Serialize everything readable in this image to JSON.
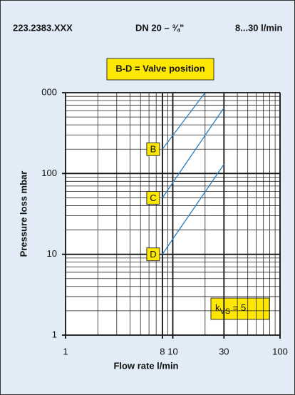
{
  "chart_data": {
    "type": "line",
    "header": [
      "223.2383.XXX",
      "DN 20 – ¾\"",
      "8...30 l/min"
    ],
    "legend_box": "B-D = Valve position",
    "y_label": "Pressure loss mbar",
    "x_label": "Flow rate l/min",
    "annotation": {
      "k": "k",
      "sub": "VS",
      "rest": " = 5"
    },
    "xlog": true,
    "ylog": true,
    "grid": true,
    "xlim": [
      1,
      100
    ],
    "ylim": [
      1,
      1000
    ],
    "xticks": [
      1,
      8,
      10,
      30,
      100
    ],
    "yticks": [
      1,
      10,
      100,
      {
        "value": 1000,
        "label": "000"
      }
    ],
    "xminor": [
      2,
      3,
      4,
      5,
      6,
      7,
      9,
      20,
      40,
      50,
      60,
      70,
      80,
      90
    ],
    "yminor": [
      2,
      3,
      4,
      5,
      6,
      7,
      8,
      9,
      20,
      30,
      40,
      50,
      60,
      70,
      80,
      90,
      200,
      300,
      400,
      500,
      600,
      700,
      800,
      900
    ],
    "series": [
      {
        "name": "B",
        "color": "#2a7fc0",
        "x": [
          8,
          20
        ],
        "values": [
          200,
          1000
        ]
      },
      {
        "name": "C",
        "color": "#2a7fc0",
        "x": [
          8,
          30
        ],
        "values": [
          50,
          650
        ]
      },
      {
        "name": "D",
        "color": "#2a7fc0",
        "x": [
          8,
          30
        ],
        "values": [
          10,
          130
        ]
      }
    ]
  }
}
